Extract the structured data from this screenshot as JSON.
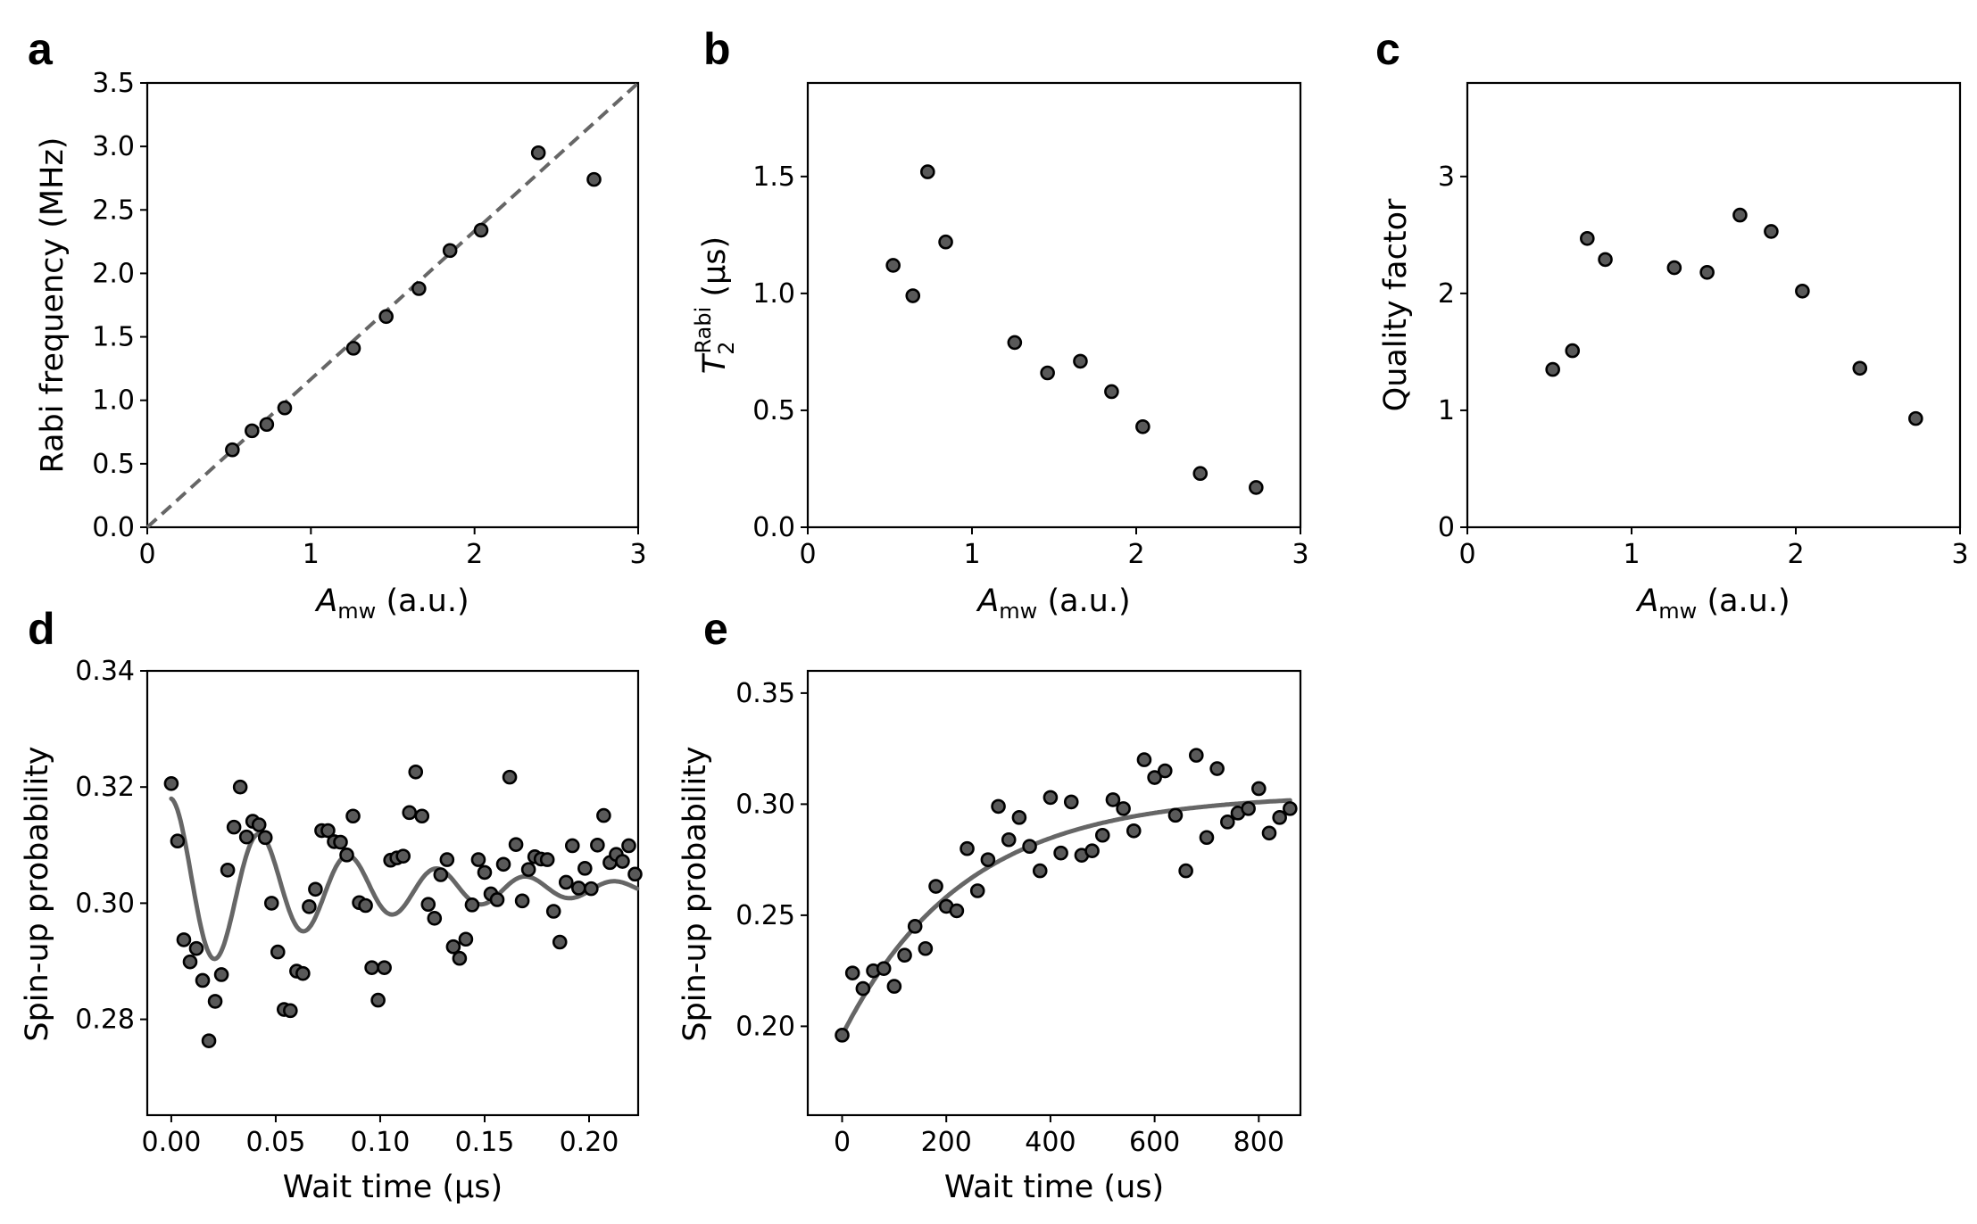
{
  "chart_data": [
    {
      "panel": "a",
      "type": "scatter",
      "xlabel_main": "A",
      "xlabel_sub": "mw",
      "xlabel_unit": " (a.u.)",
      "ylabel": "Rabi frequency (MHz)",
      "xlim": [
        0,
        3
      ],
      "ylim": [
        0,
        3.5
      ],
      "xticks": [
        0,
        1,
        2,
        3
      ],
      "xtick_labels": [
        "0",
        "1",
        "2",
        "3"
      ],
      "yticks": [
        0,
        0.5,
        1,
        1.5,
        2,
        2.5,
        3,
        3.5
      ],
      "ytick_labels": [
        "0.0",
        "0.5",
        "1.0",
        "1.5",
        "2.0",
        "2.5",
        "3.0",
        "3.5"
      ],
      "x": [
        0.52,
        0.64,
        0.73,
        0.84,
        1.26,
        1.46,
        1.66,
        1.85,
        2.04,
        2.39,
        2.73
      ],
      "y": [
        0.61,
        0.76,
        0.81,
        0.94,
        1.41,
        1.66,
        1.88,
        2.18,
        2.34,
        2.95,
        2.74
      ],
      "reference_line": {
        "style": "dashed",
        "x": [
          0,
          3
        ],
        "y": [
          0,
          3.5
        ]
      }
    },
    {
      "panel": "b",
      "type": "scatter",
      "xlabel_main": "A",
      "xlabel_sub": "mw",
      "xlabel_unit": " (a.u.)",
      "ylabel_main": "T",
      "ylabel_sub": "2",
      "ylabel_sup": "Rabi",
      "ylabel_unit": " (μs)",
      "xlim": [
        0,
        3
      ],
      "ylim": [
        0,
        1.9
      ],
      "xticks": [
        0,
        1,
        2,
        3
      ],
      "xtick_labels": [
        "0",
        "1",
        "2",
        "3"
      ],
      "yticks": [
        0,
        0.5,
        1,
        1.5
      ],
      "ytick_labels": [
        "0.0",
        "0.5",
        "1.0",
        "1.5"
      ],
      "x": [
        0.52,
        0.64,
        0.73,
        0.84,
        1.26,
        1.46,
        1.66,
        1.85,
        2.04,
        2.39,
        2.73
      ],
      "y": [
        1.12,
        0.99,
        1.52,
        1.22,
        0.79,
        0.66,
        0.71,
        0.58,
        0.43,
        0.23,
        0.17
      ]
    },
    {
      "panel": "c",
      "type": "scatter",
      "xlabel_main": "A",
      "xlabel_sub": "mw",
      "xlabel_unit": " (a.u.)",
      "ylabel": "Quality factor",
      "xlim": [
        0,
        3
      ],
      "ylim": [
        0,
        3.8
      ],
      "xticks": [
        0,
        1,
        2,
        3
      ],
      "xtick_labels": [
        "0",
        "1",
        "2",
        "3"
      ],
      "yticks": [
        0,
        1,
        2,
        3
      ],
      "ytick_labels": [
        "0",
        "1",
        "2",
        "3"
      ],
      "x": [
        0.52,
        0.64,
        0.73,
        0.84,
        1.26,
        1.46,
        1.66,
        1.85,
        2.04,
        2.39,
        2.73
      ],
      "y": [
        1.35,
        1.51,
        2.47,
        2.29,
        2.22,
        2.18,
        2.67,
        2.53,
        2.02,
        1.36,
        0.93
      ]
    },
    {
      "panel": "d",
      "type": "scatter",
      "xlabel": "Wait time (μs)",
      "ylabel": "Spin-up probability",
      "xlim": [
        -0.0115,
        0.2235
      ],
      "ylim": [
        0.2635,
        0.34
      ],
      "xticks": [
        0,
        0.05,
        0.1,
        0.15,
        0.2
      ],
      "xtick_labels": [
        "0.00",
        "0.05",
        "0.10",
        "0.15",
        "0.20"
      ],
      "yticks": [
        0.28,
        0.3,
        0.32,
        0.34
      ],
      "ytick_labels": [
        "0.28",
        "0.30",
        "0.32",
        "0.34"
      ],
      "x": [
        0.0,
        0.003,
        0.006,
        0.009,
        0.012,
        0.015,
        0.018,
        0.021,
        0.024,
        0.027,
        0.03,
        0.033,
        0.036,
        0.039,
        0.042,
        0.045,
        0.048,
        0.051,
        0.054,
        0.057,
        0.06,
        0.063,
        0.066,
        0.069,
        0.072,
        0.075,
        0.078,
        0.081,
        0.084,
        0.087,
        0.09,
        0.093,
        0.096,
        0.099,
        0.102,
        0.105,
        0.108,
        0.111,
        0.114,
        0.117,
        0.12,
        0.123,
        0.126,
        0.129,
        0.132,
        0.135,
        0.138,
        0.141,
        0.144,
        0.147,
        0.15,
        0.153,
        0.156,
        0.159,
        0.162,
        0.165,
        0.168,
        0.171,
        0.174,
        0.177,
        0.18,
        0.183,
        0.186,
        0.189,
        0.192,
        0.195,
        0.198,
        0.201,
        0.204,
        0.207,
        0.21,
        0.213,
        0.216,
        0.219,
        0.222
      ],
      "y": [
        0.3206,
        0.3107,
        0.2937,
        0.2899,
        0.2922,
        0.2867,
        0.2763,
        0.2831,
        0.2877,
        0.3057,
        0.3131,
        0.32,
        0.3114,
        0.3141,
        0.3135,
        0.3113,
        0.3,
        0.2916,
        0.2817,
        0.2815,
        0.2883,
        0.2879,
        0.2994,
        0.3024,
        0.3125,
        0.3125,
        0.3106,
        0.3105,
        0.3083,
        0.315,
        0.3001,
        0.2996,
        0.2889,
        0.2833,
        0.2889,
        0.3074,
        0.3078,
        0.3081,
        0.3156,
        0.3226,
        0.315,
        0.2998,
        0.2974,
        0.3049,
        0.3075,
        0.2925,
        0.2905,
        0.2938,
        0.2997,
        0.3075,
        0.3053,
        0.3016,
        0.3006,
        0.3067,
        0.3217,
        0.3101,
        0.3004,
        0.3058,
        0.308,
        0.3076,
        0.3075,
        0.2986,
        0.2933,
        0.3036,
        0.3099,
        0.3026,
        0.306,
        0.3025,
        0.31,
        0.3151,
        0.307,
        0.3084,
        0.3072,
        0.3099,
        0.305
      ],
      "fit": {
        "model": "damped_cosine",
        "offset": 0.3025,
        "amplitude": 0.0155,
        "period": 0.0425,
        "tau": 0.085,
        "phase": 0,
        "x_range": [
          0,
          0.223
        ]
      }
    },
    {
      "panel": "e",
      "type": "scatter",
      "xlabel": "Wait time (us)",
      "ylabel": "Spin-up probability",
      "xlim": [
        -66,
        880
      ],
      "ylim": [
        0.16,
        0.36
      ],
      "xticks": [
        0,
        200,
        400,
        600,
        800
      ],
      "xtick_labels": [
        "0",
        "200",
        "400",
        "600",
        "800"
      ],
      "yticks": [
        0.2,
        0.25,
        0.3,
        0.35
      ],
      "ytick_labels": [
        "0.20",
        "0.25",
        "0.30",
        "0.35"
      ],
      "x": [
        0,
        20,
        40,
        60,
        80,
        100,
        120,
        140,
        160,
        180,
        200,
        220,
        240,
        260,
        280,
        300,
        320,
        340,
        360,
        380,
        400,
        420,
        440,
        460,
        480,
        500,
        520,
        540,
        560,
        580,
        600,
        620,
        640,
        660,
        680,
        700,
        720,
        740,
        760,
        780,
        800,
        820,
        840,
        860
      ],
      "y": [
        0.196,
        0.224,
        0.217,
        0.225,
        0.226,
        0.218,
        0.232,
        0.245,
        0.235,
        0.263,
        0.254,
        0.252,
        0.28,
        0.261,
        0.275,
        0.299,
        0.284,
        0.294,
        0.281,
        0.27,
        0.303,
        0.278,
        0.301,
        0.277,
        0.279,
        0.286,
        0.302,
        0.298,
        0.288,
        0.32,
        0.312,
        0.315,
        0.295,
        0.27,
        0.322,
        0.285,
        0.316,
        0.292,
        0.296,
        0.298,
        0.307,
        0.287,
        0.294,
        0.298
      ],
      "fit": {
        "model": "exponential_saturation",
        "plateau": 0.3045,
        "start": 0.196,
        "tau": 235,
        "x_range": [
          0,
          860
        ]
      }
    }
  ]
}
